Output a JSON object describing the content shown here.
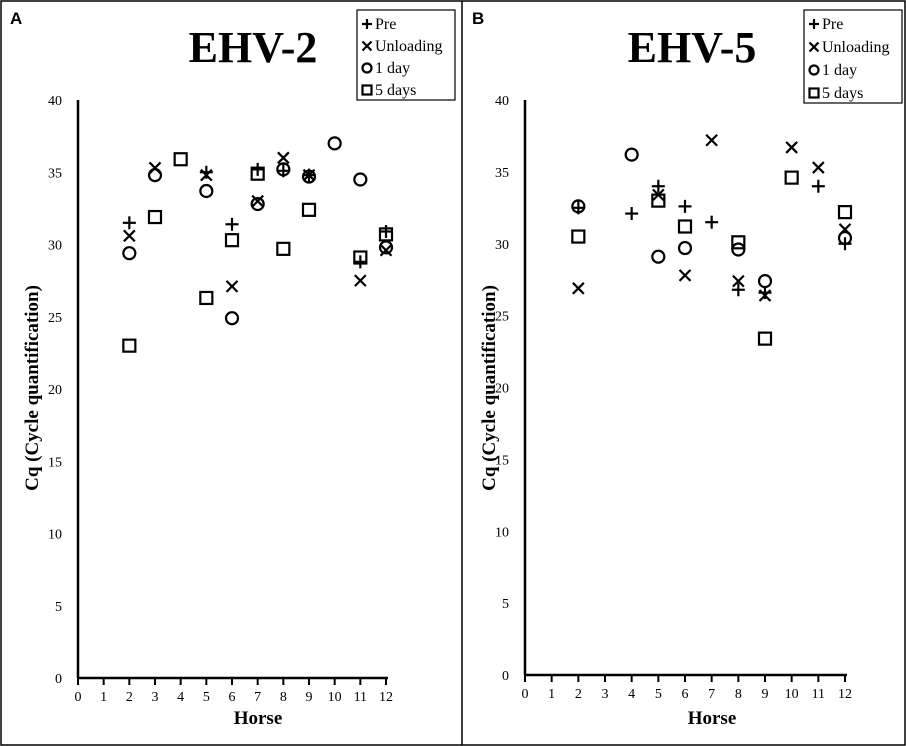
{
  "chart_data": [
    {
      "type": "scatter",
      "panel": "A",
      "title": "EHV-2",
      "xlabel": "Horse",
      "ylabel": "Cq (Cycle quantification)",
      "xlim": [
        0,
        12
      ],
      "ylim": [
        0,
        40
      ],
      "xticks": [
        0,
        1,
        2,
        3,
        4,
        5,
        6,
        7,
        8,
        9,
        10,
        11,
        12
      ],
      "yticks": [
        0,
        5,
        10,
        15,
        20,
        25,
        30,
        35,
        40
      ],
      "grid": false,
      "legend": "top-right",
      "series": [
        {
          "name": "Pre",
          "marker": "plus",
          "points": [
            [
              2,
              31.5
            ],
            [
              5,
              35.0
            ],
            [
              6,
              31.4
            ],
            [
              7,
              35.2
            ],
            [
              8,
              35.1
            ],
            [
              9,
              34.8
            ],
            [
              11,
              28.8
            ],
            [
              12,
              30.9
            ]
          ]
        },
        {
          "name": "Unloading",
          "marker": "x",
          "points": [
            [
              2,
              30.6
            ],
            [
              3,
              35.3
            ],
            [
              5,
              34.8
            ],
            [
              6,
              27.1
            ],
            [
              7,
              33.0
            ],
            [
              8,
              36.0
            ],
            [
              9,
              34.8
            ],
            [
              11,
              27.5
            ],
            [
              12,
              29.6
            ]
          ]
        },
        {
          "name": "1 day",
          "marker": "circle",
          "points": [
            [
              2,
              29.4
            ],
            [
              3,
              34.8
            ],
            [
              5,
              33.7
            ],
            [
              6,
              24.9
            ],
            [
              7,
              32.8
            ],
            [
              8,
              35.2
            ],
            [
              9,
              34.7
            ],
            [
              10,
              37.0
            ],
            [
              11,
              34.5
            ],
            [
              12,
              29.8
            ]
          ]
        },
        {
          "name": "5 days",
          "marker": "square",
          "points": [
            [
              2,
              23.0
            ],
            [
              3,
              31.9
            ],
            [
              4,
              35.9
            ],
            [
              5,
              26.3
            ],
            [
              6,
              30.3
            ],
            [
              7,
              34.9
            ],
            [
              8,
              29.7
            ],
            [
              9,
              32.4
            ],
            [
              11,
              29.1
            ],
            [
              12,
              30.7
            ]
          ]
        }
      ]
    },
    {
      "type": "scatter",
      "panel": "B",
      "title": "EHV-5",
      "xlabel": "Horse",
      "ylabel": "Cq (Cycle quantification)",
      "xlim": [
        0,
        12
      ],
      "ylim": [
        0,
        40
      ],
      "xticks": [
        0,
        1,
        2,
        3,
        4,
        5,
        6,
        7,
        8,
        9,
        10,
        11,
        12
      ],
      "yticks": [
        0,
        5,
        10,
        15,
        20,
        25,
        30,
        35,
        40
      ],
      "grid": false,
      "legend": "top-right",
      "series": [
        {
          "name": "Pre",
          "marker": "plus",
          "points": [
            [
              2,
              32.5
            ],
            [
              4,
              32.1
            ],
            [
              5,
              34.0
            ],
            [
              6,
              32.6
            ],
            [
              7,
              31.5
            ],
            [
              8,
              26.8
            ],
            [
              9,
              26.6
            ],
            [
              11,
              34.0
            ],
            [
              12,
              30.0
            ]
          ]
        },
        {
          "name": "Unloading",
          "marker": "x",
          "points": [
            [
              2,
              26.9
            ],
            [
              5,
              33.4
            ],
            [
              6,
              27.8
            ],
            [
              7,
              37.2
            ],
            [
              8,
              27.4
            ],
            [
              9,
              26.4
            ],
            [
              10,
              36.7
            ],
            [
              11,
              35.3
            ],
            [
              12,
              31.0
            ]
          ]
        },
        {
          "name": "1 day",
          "marker": "circle",
          "points": [
            [
              2,
              32.6
            ],
            [
              4,
              36.2
            ],
            [
              5,
              29.1
            ],
            [
              6,
              29.7
            ],
            [
              8,
              29.6
            ],
            [
              9,
              27.4
            ],
            [
              12,
              30.4
            ]
          ]
        },
        {
          "name": "5 days",
          "marker": "square",
          "points": [
            [
              2,
              30.5
            ],
            [
              5,
              33.0
            ],
            [
              6,
              31.2
            ],
            [
              8,
              30.1
            ],
            [
              9,
              23.4
            ],
            [
              10,
              34.6
            ],
            [
              12,
              32.2
            ]
          ]
        }
      ]
    }
  ]
}
